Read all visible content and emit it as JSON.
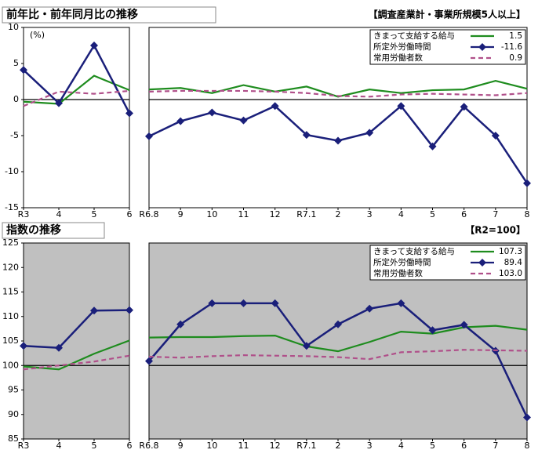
{
  "chart_data": [
    {
      "type": "line",
      "title": "前年比・前年同月比の推移",
      "unit": "(%)",
      "categories": [
        "R3",
        "4",
        "5",
        "6"
      ],
      "ylim": [
        -15,
        10
      ],
      "yticks": [
        -15,
        -10,
        -5,
        0,
        5,
        10
      ],
      "reference_line": 0,
      "background": "#ffffff",
      "series": [
        {
          "color": "#1e8c1e",
          "dash": false,
          "values": [
            -0.3,
            -0.6,
            3.3,
            1.3
          ]
        },
        {
          "color": "#1a1f7a",
          "dash": false,
          "marker": "diamond",
          "values": [
            4.1,
            -0.5,
            7.5,
            -1.9
          ]
        },
        {
          "color": "#b0508a",
          "dash": true,
          "values": [
            -0.9,
            1.1,
            0.8,
            1.2
          ]
        }
      ]
    },
    {
      "type": "line",
      "note": "【調査産業計・事業所規模5人以上】",
      "categories": [
        "R6.8",
        "9",
        "10",
        "11",
        "12",
        "R7.1",
        "2",
        "3",
        "4",
        "5",
        "6",
        "7",
        "8"
      ],
      "ylim": [
        -15,
        10
      ],
      "reference_line": 0,
      "background": "#ffffff",
      "legend": "upper right",
      "series": [
        {
          "name": "きまって支給する給与",
          "legend_value": "1.5",
          "color": "#1e8c1e",
          "dash": false,
          "values": [
            1.4,
            1.6,
            0.9,
            2.0,
            1.1,
            1.8,
            0.4,
            1.4,
            0.9,
            1.3,
            1.4,
            2.6,
            1.5
          ]
        },
        {
          "name": "所定外労働時間",
          "legend_value": "-11.6",
          "color": "#1a1f7a",
          "dash": false,
          "marker": "diamond",
          "values": [
            -5.1,
            -3.0,
            -1.8,
            -2.9,
            -0.9,
            -4.9,
            -5.7,
            -4.6,
            -0.9,
            -6.5,
            -1.0,
            -5.0,
            -11.6
          ]
        },
        {
          "name": "常用労働者数",
          "legend_value": "0.9",
          "color": "#b0508a",
          "dash": true,
          "values": [
            1.1,
            1.2,
            1.2,
            1.2,
            1.1,
            0.9,
            0.5,
            0.4,
            0.7,
            0.8,
            0.7,
            0.6,
            0.9
          ]
        }
      ]
    },
    {
      "type": "line",
      "title": "指数の推移",
      "categories": [
        "R3",
        "4",
        "5",
        "6"
      ],
      "ylim": [
        85,
        125
      ],
      "yticks": [
        85,
        90,
        95,
        100,
        105,
        110,
        115,
        120,
        125
      ],
      "reference_line": 100,
      "background": "#c0c0c0",
      "series": [
        {
          "color": "#1e8c1e",
          "dash": false,
          "values": [
            99.8,
            99.2,
            102.4,
            105.1
          ]
        },
        {
          "color": "#1a1f7a",
          "dash": false,
          "marker": "diamond",
          "values": [
            104.0,
            103.6,
            111.2,
            111.3
          ]
        },
        {
          "color": "#b0508a",
          "dash": true,
          "values": [
            99.2,
            100.0,
            100.8,
            102.0
          ]
        }
      ]
    },
    {
      "type": "line",
      "note": "【R2=100】",
      "categories": [
        "R6.8",
        "9",
        "10",
        "11",
        "12",
        "R7.1",
        "2",
        "3",
        "4",
        "5",
        "6",
        "7",
        "8"
      ],
      "ylim": [
        85,
        125
      ],
      "reference_line": 100,
      "background": "#c0c0c0",
      "legend": "upper right",
      "series": [
        {
          "name": "きまって支給する給与",
          "legend_value": "107.3",
          "color": "#1e8c1e",
          "dash": false,
          "values": [
            105.7,
            105.8,
            105.8,
            106.0,
            106.1,
            103.9,
            102.9,
            104.8,
            106.9,
            106.5,
            107.8,
            108.1,
            107.3
          ]
        },
        {
          "name": "所定外労働時間",
          "legend_value": "89.4",
          "color": "#1a1f7a",
          "dash": false,
          "marker": "diamond",
          "values": [
            100.9,
            108.4,
            112.7,
            112.7,
            112.7,
            104.0,
            108.4,
            111.6,
            112.7,
            107.2,
            108.3,
            103.0,
            89.4
          ]
        },
        {
          "name": "常用労働者数",
          "legend_value": "103.0",
          "color": "#b0508a",
          "dash": true,
          "values": [
            101.8,
            101.6,
            101.9,
            102.1,
            102.0,
            101.9,
            101.7,
            101.3,
            102.7,
            102.9,
            103.2,
            103.1,
            103.0
          ]
        }
      ]
    }
  ]
}
